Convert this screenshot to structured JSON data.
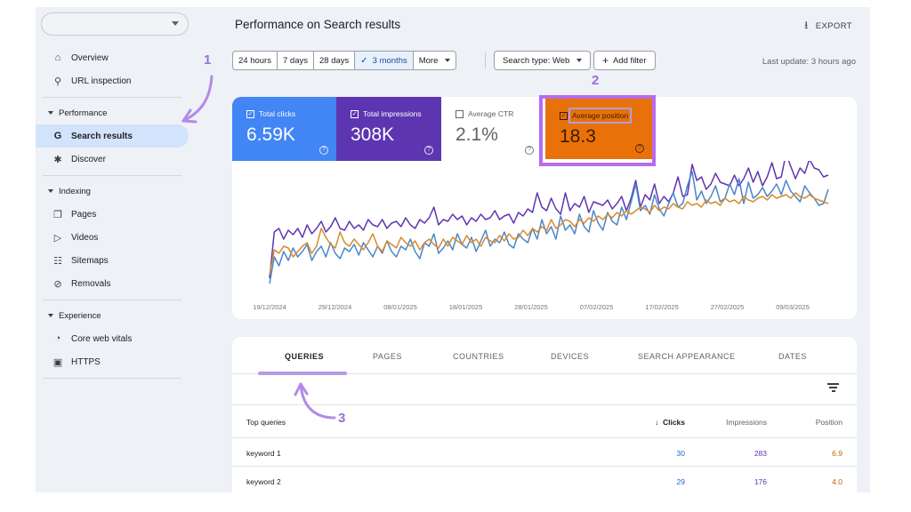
{
  "sidebar": {
    "property_selector": "",
    "items": [
      {
        "label": "Overview",
        "icon": "home-icon"
      },
      {
        "label": "URL inspection",
        "icon": "search-icon"
      }
    ],
    "sections": [
      {
        "label": "Performance",
        "items": [
          {
            "label": "Search results",
            "icon": "google-g-icon",
            "active": true
          },
          {
            "label": "Discover",
            "icon": "asterisk-icon"
          }
        ]
      },
      {
        "label": "Indexing",
        "items": [
          {
            "label": "Pages",
            "icon": "pages-icon"
          },
          {
            "label": "Videos",
            "icon": "video-icon"
          },
          {
            "label": "Sitemaps",
            "icon": "sitemap-icon"
          },
          {
            "label": "Removals",
            "icon": "eye-off-icon"
          }
        ]
      },
      {
        "label": "Experience",
        "items": [
          {
            "label": "Core web vitals",
            "icon": "gauge-icon"
          },
          {
            "label": "HTTPS",
            "icon": "lock-icon"
          }
        ]
      }
    ]
  },
  "header": {
    "title": "Performance on Search results",
    "export_label": "EXPORT"
  },
  "filters": {
    "date_ranges": [
      "24 hours",
      "7 days",
      "28 days",
      "3 months"
    ],
    "selected_range": "3 months",
    "more_label": "More",
    "search_type": "Search type: Web",
    "add_filter": "Add filter",
    "last_update": "Last update: 3 hours ago"
  },
  "metrics": {
    "total_clicks": {
      "label": "Total clicks",
      "value": "6.59K",
      "checked": true,
      "color": "#4285f4"
    },
    "total_impressions": {
      "label": "Total impressions",
      "value": "308K",
      "checked": true,
      "color": "#5e35b1"
    },
    "average_ctr": {
      "label": "Average CTR",
      "value": "2.1%",
      "checked": false,
      "color": "#00897b"
    },
    "average_position": {
      "label": "Average position",
      "value": "18.3",
      "checked": true,
      "color": "#e8710a"
    }
  },
  "chart_data": {
    "type": "line",
    "x_tick_labels": [
      "19/12/2024",
      "29/12/2024",
      "08/01/2025",
      "18/01/2025",
      "28/01/2025",
      "07/02/2025",
      "17/02/2025",
      "27/02/2025",
      "09/03/2025"
    ],
    "series": [
      {
        "name": "Total impressions",
        "color": "#5e35b1",
        "values": [
          0.06,
          0.58,
          0.62,
          0.5,
          0.6,
          0.55,
          0.62,
          0.52,
          0.66,
          0.56,
          0.62,
          0.7,
          0.58,
          0.64,
          0.74,
          0.62,
          0.6,
          0.7,
          0.62,
          0.66,
          0.6,
          0.72,
          0.66,
          0.64,
          0.72,
          0.62,
          0.68,
          0.7,
          0.64,
          0.74,
          0.66,
          0.62,
          0.72,
          0.68,
          0.74,
          0.86,
          0.66,
          0.72,
          0.7,
          0.78,
          0.72,
          0.76,
          0.66,
          0.74,
          0.7,
          0.78,
          0.72,
          0.74,
          0.82,
          0.72,
          0.76,
          0.78,
          0.68,
          0.8,
          0.76,
          0.84,
          0.8,
          1.02,
          0.86,
          0.82,
          0.96,
          0.84,
          0.78,
          1.02,
          0.82,
          0.9,
          0.86,
          0.98,
          0.8,
          0.92,
          0.9,
          0.88,
          0.94,
          0.84,
          0.9,
          0.98,
          0.82,
          0.96,
          1.16,
          0.86,
          1.0,
          0.94,
          1.12,
          0.9,
          0.98,
          0.92,
          1.02,
          1.2,
          0.98,
          1.0,
          1.34,
          1.16,
          1.2,
          1.06,
          1.12,
          1.24,
          1.14,
          1.12,
          1.1,
          1.22,
          1.1,
          1.18,
          1.3,
          1.14,
          1.26,
          1.1,
          1.2,
          1.36,
          1.18,
          1.2,
          1.46,
          1.32,
          1.18,
          1.3,
          1.24,
          1.4,
          1.3,
          1.28,
          1.2,
          1.22
        ]
      },
      {
        "name": "Total clicks",
        "color": "#4a86c8",
        "values": [
          0.0,
          0.3,
          0.2,
          0.36,
          0.26,
          0.4,
          0.3,
          0.36,
          0.44,
          0.26,
          0.36,
          0.42,
          0.3,
          0.46,
          0.34,
          0.28,
          0.4,
          0.36,
          0.44,
          0.32,
          0.46,
          0.38,
          0.3,
          0.42,
          0.34,
          0.48,
          0.36,
          0.3,
          0.42,
          0.38,
          0.5,
          0.36,
          0.28,
          0.46,
          0.42,
          0.56,
          0.34,
          0.4,
          0.48,
          0.38,
          0.56,
          0.44,
          0.4,
          0.52,
          0.36,
          0.48,
          0.6,
          0.42,
          0.5,
          0.46,
          0.58,
          0.44,
          0.4,
          0.56,
          0.5,
          0.46,
          0.62,
          0.5,
          0.72,
          0.56,
          0.64,
          0.5,
          0.76,
          0.6,
          0.66,
          0.56,
          0.78,
          0.64,
          0.58,
          0.82,
          0.68,
          0.6,
          0.8,
          0.7,
          0.66,
          0.86,
          0.72,
          0.92,
          1.12,
          0.82,
          0.88,
          0.78,
          1.0,
          0.84,
          0.76,
          0.9,
          1.02,
          0.86,
          0.9,
          1.1,
          1.26,
          0.94,
          1.04,
          0.9,
          0.98,
          1.1,
          0.92,
          0.96,
          1.12,
          1.0,
          1.18,
          0.9,
          1.14,
          0.96,
          1.0,
          1.08,
          0.98,
          1.04,
          1.12,
          1.0,
          1.16,
          1.04,
          0.98,
          0.92,
          1.1,
          1.02,
          0.96,
          0.88,
          0.9,
          1.06
        ]
      },
      {
        "name": "Average position",
        "color": "#d88a2c",
        "values": [
          0.1,
          0.38,
          0.34,
          0.42,
          0.4,
          0.3,
          0.36,
          0.42,
          0.46,
          0.34,
          0.42,
          0.62,
          0.52,
          0.44,
          0.4,
          0.58,
          0.46,
          0.42,
          0.5,
          0.44,
          0.38,
          0.46,
          0.56,
          0.42,
          0.36,
          0.48,
          0.44,
          0.4,
          0.52,
          0.46,
          0.42,
          0.48,
          0.38,
          0.46,
          0.5,
          0.44,
          0.4,
          0.5,
          0.42,
          0.52,
          0.48,
          0.44,
          0.54,
          0.46,
          0.5,
          0.42,
          0.52,
          0.48,
          0.46,
          0.54,
          0.48,
          0.56,
          0.5,
          0.52,
          0.6,
          0.54,
          0.62,
          0.58,
          0.64,
          0.6,
          0.72,
          0.62,
          0.66,
          0.72,
          0.7,
          0.64,
          0.72,
          0.68,
          0.74,
          0.7,
          0.76,
          0.72,
          0.78,
          0.74,
          0.8,
          0.76,
          0.82,
          0.78,
          0.82,
          0.86,
          0.84,
          0.8,
          0.88,
          0.82,
          0.86,
          0.84,
          0.9,
          0.86,
          0.84,
          0.92,
          0.88,
          0.9,
          0.86,
          0.94,
          0.9,
          0.92,
          0.88,
          0.96,
          0.92,
          0.94,
          0.9,
          0.98,
          0.94,
          0.92,
          0.96,
          0.98,
          0.94,
          1.0,
          0.96,
          0.98,
          1.0,
          0.96,
          1.02,
          0.98,
          0.96,
          1.0,
          0.96,
          0.94,
          0.92,
          0.9
        ]
      }
    ]
  },
  "table": {
    "tabs": [
      "QUERIES",
      "PAGES",
      "COUNTRIES",
      "DEVICES",
      "SEARCH APPEARANCE",
      "DATES"
    ],
    "active_tab": "QUERIES",
    "columns": {
      "query": "Top queries",
      "clicks": "Clicks",
      "impressions": "Impressions",
      "position": "Position"
    },
    "sort_arrow": "↓",
    "rows": [
      {
        "query": "keyword 1",
        "clicks": "30",
        "impressions": "283",
        "position": "6.9"
      },
      {
        "query": "keyword 2",
        "clicks": "29",
        "impressions": "176",
        "position": "4.0"
      }
    ]
  },
  "annotations": {
    "one": "1",
    "two": "2",
    "three": "3",
    "accent": "#9a6fd6"
  }
}
